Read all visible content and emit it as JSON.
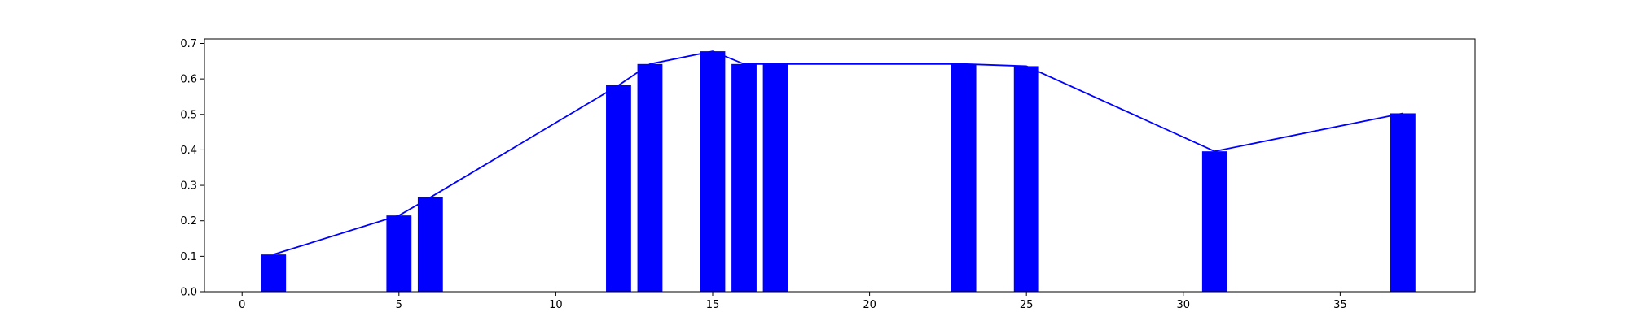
{
  "chart_data": {
    "type": "bar",
    "x": [
      1,
      5,
      6,
      12,
      13,
      15,
      16,
      17,
      23,
      25,
      31,
      37
    ],
    "values": [
      0.105,
      0.215,
      0.266,
      0.582,
      0.642,
      0.678,
      0.642,
      0.642,
      0.642,
      0.636,
      0.396,
      0.503
    ],
    "line_series": {
      "x": [
        1,
        5,
        6,
        12,
        13,
        15,
        16,
        17,
        23,
        25,
        31,
        37
      ],
      "y": [
        0.105,
        0.215,
        0.266,
        0.582,
        0.642,
        0.678,
        0.642,
        0.642,
        0.642,
        0.636,
        0.396,
        0.503
      ]
    },
    "bar_width": 0.8,
    "title": "",
    "xlabel": "",
    "ylabel": "",
    "xlim": [
      -1.2,
      39.3
    ],
    "ylim": [
      0.0,
      0.7126
    ],
    "x_ticks": [
      0,
      5,
      10,
      15,
      20,
      25,
      30,
      35
    ],
    "x_tick_labels": [
      "0",
      "5",
      "10",
      "15",
      "20",
      "25",
      "30",
      "35"
    ],
    "y_ticks": [
      0.0,
      0.1,
      0.2,
      0.3,
      0.4,
      0.5,
      0.6,
      0.7
    ],
    "y_tick_labels": [
      "0.0",
      "0.1",
      "0.2",
      "0.3",
      "0.4",
      "0.5",
      "0.6",
      "0.7"
    ],
    "grid": false,
    "legend": "none",
    "colors": {
      "bars": "#0000ff",
      "line": "#0000ff",
      "axes": "#000000"
    }
  }
}
